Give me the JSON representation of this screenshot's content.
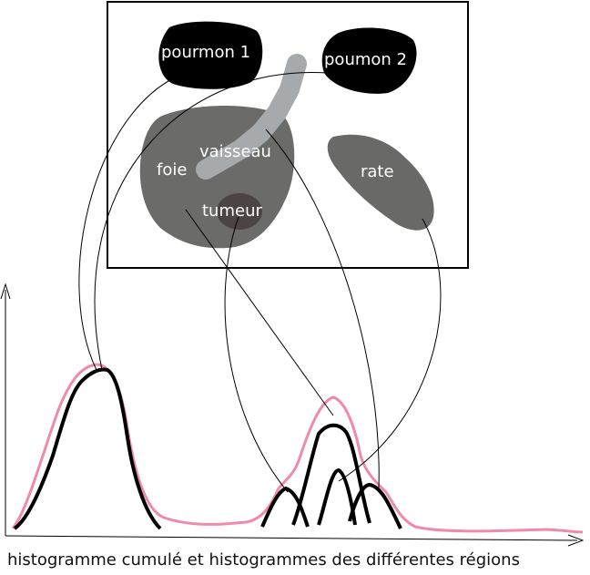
{
  "regions": {
    "pourmon1": "pourmon 1",
    "poumon2": "poumon 2",
    "vaisseau": "vaisseau",
    "foie": "foie",
    "tumeur": "tumeur",
    "rate": "rate"
  },
  "caption": "histogramme cumulé et histogrammes des différentes régions",
  "colors": {
    "lung": "#000000",
    "liver": "#6b6b69",
    "vessel": "#a6aaac",
    "tumor": "#4c4444",
    "spleen": "#696967",
    "cumulative_histogram": "#ef8aae",
    "region_histograms": "#000000"
  }
}
